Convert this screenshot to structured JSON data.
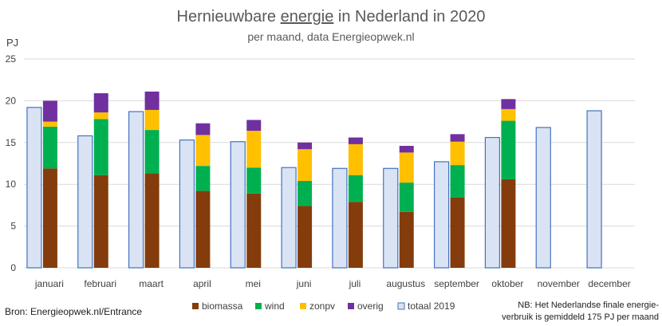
{
  "chart_data": {
    "type": "bar",
    "title_parts": [
      "Hernieuwbare ",
      "energie",
      " in Nederland in 2020"
    ],
    "subtitle": "per maand, data Energieopwek.nl",
    "ylabel": "PJ",
    "ylim": [
      0,
      25
    ],
    "yticks": [
      0,
      5,
      10,
      15,
      20,
      25
    ],
    "grid": true,
    "legend_position": "bottom",
    "categories": [
      "januari",
      "februari",
      "maart",
      "april",
      "mei",
      "juni",
      "juli",
      "augustus",
      "september",
      "oktober",
      "november",
      "december"
    ],
    "stacked_series": [
      {
        "name": "biomassa",
        "color": "#843c0c",
        "values": [
          11.9,
          11.1,
          11.3,
          9.2,
          8.9,
          7.4,
          7.9,
          6.7,
          8.4,
          10.6,
          null,
          null
        ]
      },
      {
        "name": "wind",
        "color": "#00b050",
        "values": [
          5.0,
          6.7,
          5.2,
          3.0,
          3.1,
          3.0,
          3.2,
          3.5,
          3.9,
          7.0,
          null,
          null
        ]
      },
      {
        "name": "zonpv",
        "color": "#ffc000",
        "values": [
          0.6,
          0.8,
          2.4,
          3.7,
          4.4,
          3.8,
          3.7,
          3.6,
          2.8,
          1.4,
          null,
          null
        ]
      },
      {
        "name": "overig",
        "color": "#7030a0",
        "values": [
          2.5,
          2.3,
          2.2,
          1.4,
          1.3,
          0.8,
          0.8,
          0.8,
          0.9,
          1.2,
          null,
          null
        ]
      }
    ],
    "reference_series": {
      "name": "totaal 2019",
      "fill": "#dae3f3",
      "stroke": "#4472c4",
      "values": [
        19.2,
        15.8,
        18.7,
        15.3,
        15.1,
        12.0,
        11.9,
        11.9,
        12.7,
        15.6,
        16.8,
        18.8
      ]
    }
  },
  "footer": {
    "source": "Bron: Energieopwek.nl/Entrance",
    "note_line1": "NB: Het Nederlandse finale energie-",
    "note_line2": "verbruik is gemiddeld 175 PJ per maand"
  }
}
